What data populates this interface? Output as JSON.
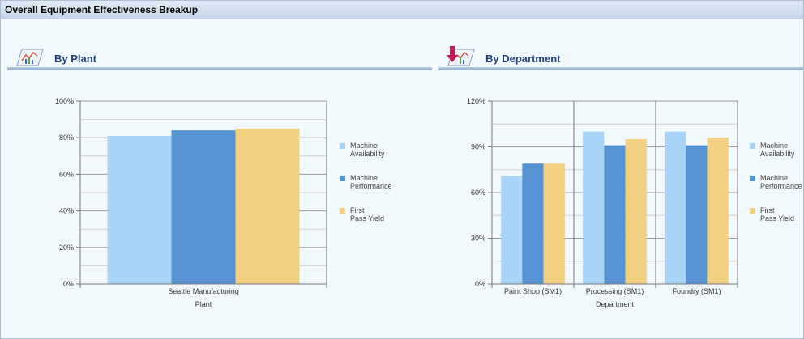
{
  "window": {
    "title": "Overall Equipment Effectiveness Breakup"
  },
  "sections": {
    "plant": {
      "title": "By Plant"
    },
    "department": {
      "title": "By Department"
    }
  },
  "colors": {
    "availability": "#a7d4f7",
    "performance": "#5593d2",
    "fpy": "#f1d082"
  },
  "chart_data": [
    {
      "type": "bar",
      "title": "By Plant",
      "categories": [
        "Seattle Manufacturing"
      ],
      "series": [
        {
          "name": "Machine Availability",
          "values": [
            81
          ]
        },
        {
          "name": "Machine Performance",
          "values": [
            84
          ]
        },
        {
          "name": "First Pass Yield",
          "values": [
            85
          ]
        }
      ],
      "xlabel": "Plant",
      "ylabel": "",
      "ylim": [
        0,
        100
      ],
      "yticks": [
        "0%",
        "20%",
        "40%",
        "60%",
        "80%",
        "100%"
      ],
      "legend": [
        "Machine Availability",
        "Machine Performance",
        "First Pass Yield"
      ]
    },
    {
      "type": "bar",
      "title": "By Department",
      "categories": [
        "Paint Shop (SM1)",
        "Processing (SM1)",
        "Foundry (SM1)"
      ],
      "series": [
        {
          "name": "Machine Availability",
          "values": [
            71,
            100,
            100
          ]
        },
        {
          "name": "Machine Performance",
          "values": [
            79,
            91,
            91
          ]
        },
        {
          "name": "First Pass Yield",
          "values": [
            79,
            95,
            96
          ]
        }
      ],
      "xlabel": "Department",
      "ylabel": "",
      "ylim": [
        0,
        120
      ],
      "yticks": [
        "0%",
        "30%",
        "60%",
        "90%",
        "120%"
      ],
      "legend": [
        "Machine Availability",
        "Machine Performance",
        "First Pass Yield"
      ]
    }
  ]
}
